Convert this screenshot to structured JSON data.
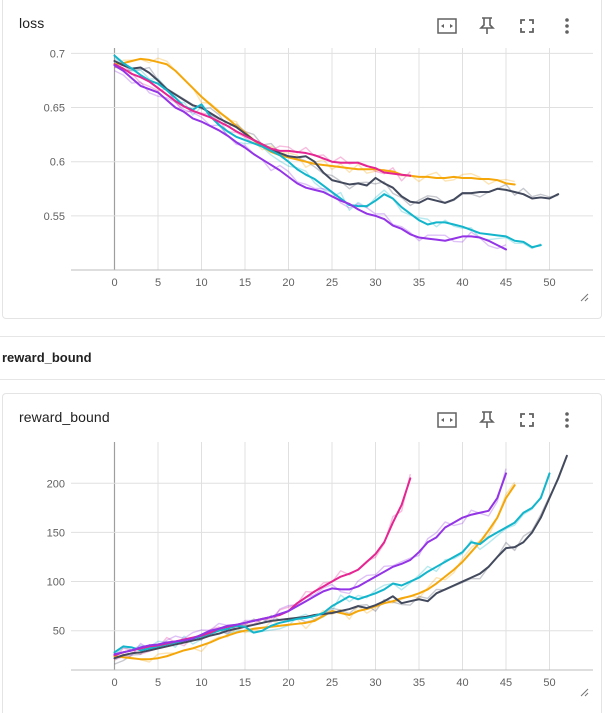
{
  "group": {
    "title": "reward_bound"
  },
  "toolbar_icons": [
    "fit-to-data-icon",
    "pin-icon",
    "fullscreen-icon",
    "more-vert-icon"
  ],
  "series_colors": {
    "orange": "#f5a70a",
    "dark-slate": "#434a5d",
    "cyan": "#12b5cb",
    "magenta": "#e52592",
    "purple": "#9334e6",
    "smoothing_alpha": 0.3
  },
  "chart_data": [
    {
      "type": "line",
      "title": "loss",
      "xlabel": "",
      "ylabel": "",
      "xlim": [
        -5,
        55
      ],
      "ylim": [
        0.5,
        0.705
      ],
      "x_ticks": [
        0,
        5,
        10,
        15,
        20,
        25,
        30,
        35,
        40,
        45,
        50
      ],
      "y_ticks": [
        0.55,
        0.6,
        0.65,
        0.7
      ],
      "y_tick_labels": [
        "0.55",
        "0.6",
        "0.65",
        "0.7"
      ],
      "grid": true,
      "legend": "none",
      "series": [
        {
          "color": "#f5a70a",
          "x_end": 46,
          "values": [
            0.69,
            0.691,
            0.693,
            0.695,
            0.694,
            0.692,
            0.69,
            0.684,
            0.676,
            0.668,
            0.66,
            0.653,
            0.646,
            0.64,
            0.633,
            0.627,
            0.62,
            0.614,
            0.609,
            0.606,
            0.604,
            0.602,
            0.6,
            0.598,
            0.597,
            0.596,
            0.595,
            0.594,
            0.593,
            0.593,
            0.593,
            0.592,
            0.591,
            0.588,
            0.587,
            0.586,
            0.586,
            0.585,
            0.585,
            0.586,
            0.585,
            0.585,
            0.584,
            0.584,
            0.583,
            0.58,
            0.579
          ]
        },
        {
          "color": "#434a5d",
          "x_end": 51,
          "values": [
            0.693,
            0.689,
            0.686,
            0.687,
            0.682,
            0.675,
            0.667,
            0.662,
            0.657,
            0.652,
            0.65,
            0.645,
            0.64,
            0.636,
            0.632,
            0.626,
            0.62,
            0.616,
            0.612,
            0.608,
            0.605,
            0.604,
            0.605,
            0.6,
            0.59,
            0.583,
            0.581,
            0.579,
            0.58,
            0.578,
            0.585,
            0.58,
            0.576,
            0.568,
            0.563,
            0.562,
            0.566,
            0.564,
            0.562,
            0.565,
            0.571,
            0.571,
            0.572,
            0.572,
            0.575,
            0.574,
            0.572,
            0.57,
            0.566,
            0.567,
            0.566,
            0.57
          ]
        },
        {
          "color": "#12b5cb",
          "x_end": 49,
          "values": [
            0.698,
            0.691,
            0.686,
            0.68,
            0.675,
            0.672,
            0.666,
            0.659,
            0.651,
            0.648,
            0.653,
            0.642,
            0.634,
            0.628,
            0.623,
            0.62,
            0.617,
            0.614,
            0.61,
            0.606,
            0.6,
            0.593,
            0.588,
            0.584,
            0.578,
            0.572,
            0.566,
            0.56,
            0.559,
            0.559,
            0.564,
            0.57,
            0.566,
            0.558,
            0.552,
            0.546,
            0.542,
            0.544,
            0.544,
            0.542,
            0.54,
            0.537,
            0.534,
            0.533,
            0.532,
            0.531,
            0.527,
            0.526,
            0.521,
            0.523
          ]
        },
        {
          "color": "#e52592",
          "x_end": 34,
          "values": [
            0.69,
            0.686,
            0.681,
            0.678,
            0.674,
            0.668,
            0.662,
            0.656,
            0.651,
            0.647,
            0.644,
            0.641,
            0.637,
            0.633,
            0.628,
            0.624,
            0.62,
            0.616,
            0.612,
            0.61,
            0.61,
            0.609,
            0.608,
            0.606,
            0.603,
            0.6,
            0.599,
            0.599,
            0.599,
            0.596,
            0.594,
            0.59,
            0.589,
            0.588,
            0.587
          ]
        },
        {
          "color": "#9334e6",
          "x_end": 45,
          "values": [
            0.689,
            0.684,
            0.677,
            0.67,
            0.667,
            0.664,
            0.657,
            0.65,
            0.646,
            0.64,
            0.637,
            0.633,
            0.629,
            0.624,
            0.618,
            0.613,
            0.607,
            0.602,
            0.597,
            0.592,
            0.586,
            0.58,
            0.576,
            0.574,
            0.572,
            0.568,
            0.564,
            0.561,
            0.556,
            0.552,
            0.55,
            0.547,
            0.541,
            0.538,
            0.533,
            0.53,
            0.529,
            0.528,
            0.527,
            0.529,
            0.531,
            0.531,
            0.53,
            0.527,
            0.523,
            0.519
          ]
        }
      ]
    },
    {
      "type": "line",
      "title": "reward_bound",
      "xlabel": "",
      "ylabel": "",
      "xlim": [
        -5,
        55
      ],
      "ylim": [
        10,
        242
      ],
      "x_ticks": [
        0,
        5,
        10,
        15,
        20,
        25,
        30,
        35,
        40,
        45,
        50
      ],
      "y_ticks": [
        50,
        100,
        150,
        200
      ],
      "y_tick_labels": [
        "50",
        "100",
        "150",
        "200"
      ],
      "grid": true,
      "legend": "none",
      "series": [
        {
          "color": "#f5a70a",
          "x_end": 46,
          "values": [
            24,
            23,
            22,
            21,
            21,
            22,
            24,
            27,
            30,
            32,
            35,
            38,
            42,
            45,
            48,
            50,
            52,
            53,
            54,
            55,
            56,
            57,
            58,
            60,
            65,
            70,
            68,
            66,
            70,
            72,
            75,
            78,
            80,
            83,
            85,
            88,
            92,
            98,
            105,
            112,
            120,
            130,
            140,
            152,
            165,
            185,
            198
          ]
        },
        {
          "color": "#434a5d",
          "x_end": 52,
          "values": [
            22,
            25,
            27,
            28,
            30,
            32,
            34,
            36,
            38,
            40,
            42,
            45,
            47,
            50,
            52,
            54,
            56,
            58,
            60,
            61,
            62,
            63,
            64,
            66,
            67,
            68,
            70,
            72,
            75,
            73,
            76,
            80,
            85,
            78,
            80,
            82,
            80,
            88,
            92,
            96,
            100,
            104,
            108,
            115,
            125,
            134,
            135,
            140,
            150,
            165,
            185,
            205,
            228
          ]
        },
        {
          "color": "#12b5cb",
          "x_end": 50,
          "values": [
            28,
            34,
            33,
            30,
            32,
            34,
            36,
            38,
            40,
            42,
            44,
            47,
            50,
            52,
            55,
            54,
            48,
            50,
            55,
            58,
            60,
            62,
            63,
            65,
            68,
            75,
            80,
            85,
            82,
            85,
            88,
            92,
            98,
            96,
            100,
            104,
            110,
            115,
            120,
            125,
            130,
            140,
            138,
            145,
            150,
            155,
            160,
            170,
            175,
            185,
            210
          ]
        },
        {
          "color": "#e52592",
          "x_end": 34,
          "values": [
            25,
            28,
            30,
            32,
            34,
            35,
            37,
            39,
            41,
            43,
            45,
            48,
            52,
            54,
            56,
            58,
            60,
            62,
            64,
            66,
            70,
            78,
            84,
            90,
            95,
            100,
            105,
            108,
            112,
            120,
            128,
            140,
            160,
            178,
            205
          ]
        },
        {
          "color": "#9334e6",
          "x_end": 45,
          "values": [
            26,
            28,
            30,
            33,
            35,
            36,
            38,
            39,
            40,
            42,
            46,
            50,
            52,
            55,
            56,
            58,
            60,
            62,
            64,
            67,
            70,
            75,
            80,
            85,
            90,
            93,
            92,
            92,
            95,
            100,
            105,
            110,
            115,
            118,
            122,
            130,
            140,
            145,
            155,
            160,
            165,
            168,
            170,
            172,
            185,
            210
          ]
        }
      ]
    }
  ]
}
